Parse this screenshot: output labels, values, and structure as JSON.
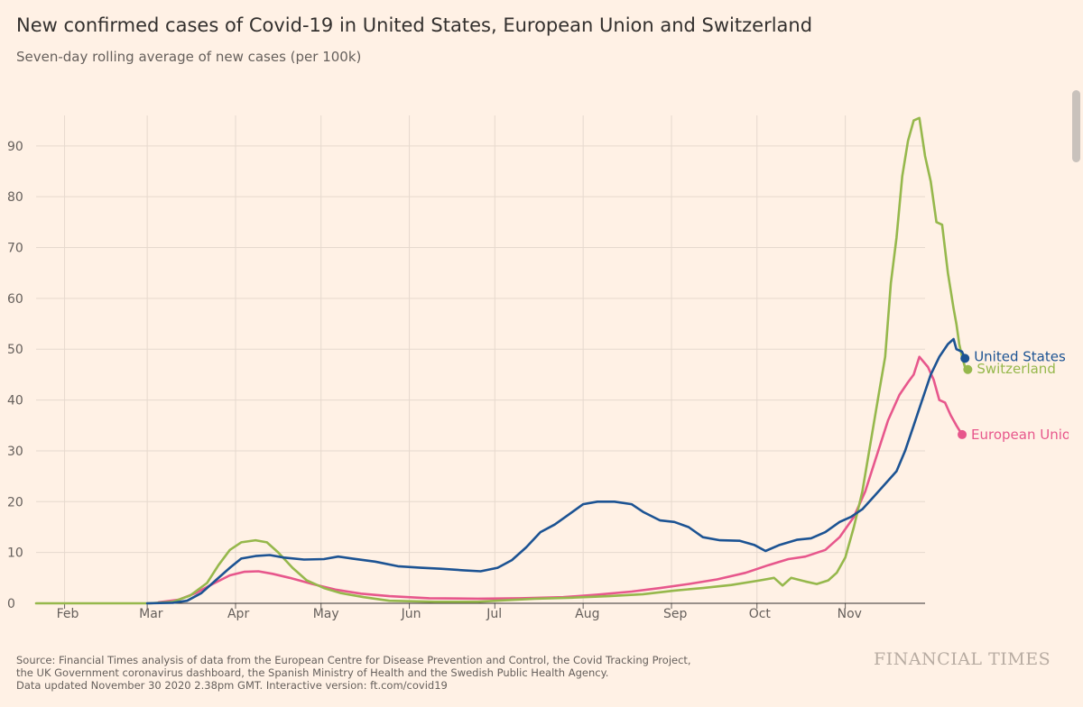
{
  "header": {
    "title": "New confirmed cases of Covid-19 in United States, European Union and Switzerland",
    "subtitle": "Seven-day rolling average of new cases (per 100k)"
  },
  "footer": {
    "source_line1": "Source: Financial Times analysis of data from the European Centre for Disease Prevention and Control, the Covid Tracking Project,",
    "source_line2": "the UK Government coronavirus dashboard, the Spanish Ministry of Health and the Swedish Public Health Agency.",
    "source_line3": "Data updated November 30 2020 2.38pm GMT. Interactive version: ft.com/covid19",
    "brand": "FINANCIAL TIMES"
  },
  "chart_data": {
    "type": "line",
    "title": "New confirmed cases of Covid-19 in United States, European Union and Switzerland",
    "subtitle": "Seven-day rolling average of new cases (per 100k)",
    "xlabel": "",
    "ylabel": "",
    "x_unit": "day of 2020",
    "xlim": [
      "2020-01-22",
      "2020-11-29"
    ],
    "ylim": [
      0,
      96
    ],
    "yticks": [
      0,
      10,
      20,
      30,
      40,
      50,
      60,
      70,
      80,
      90
    ],
    "xtick_labels": [
      "Feb",
      "Mar",
      "Apr",
      "May",
      "Jun",
      "Jul",
      "Aug",
      "Sep",
      "Oct",
      "Nov"
    ],
    "xtick_dates": [
      "2020-02-15",
      "2020-03-15",
      "2020-04-15",
      "2020-05-15",
      "2020-06-15",
      "2020-07-15",
      "2020-08-15",
      "2020-09-15",
      "2020-10-15",
      "2020-11-15"
    ],
    "grid": "vertical and horizontal",
    "legend": "direct labels at line ends",
    "series": [
      {
        "name": "United States",
        "color": "#1c5393",
        "points": [
          [
            "2020-03-01",
            0
          ],
          [
            "2020-03-10",
            0.1
          ],
          [
            "2020-03-15",
            0.5
          ],
          [
            "2020-03-20",
            2
          ],
          [
            "2020-03-25",
            4.5
          ],
          [
            "2020-03-30",
            7
          ],
          [
            "2020-04-03",
            8.8
          ],
          [
            "2020-04-08",
            9.3
          ],
          [
            "2020-04-13",
            9.5
          ],
          [
            "2020-04-18",
            9
          ],
          [
            "2020-04-25",
            8.6
          ],
          [
            "2020-05-02",
            8.7
          ],
          [
            "2020-05-07",
            9.2
          ],
          [
            "2020-05-12",
            8.8
          ],
          [
            "2020-05-20",
            8.2
          ],
          [
            "2020-05-28",
            7.3
          ],
          [
            "2020-06-05",
            7
          ],
          [
            "2020-06-12",
            6.8
          ],
          [
            "2020-06-20",
            6.5
          ],
          [
            "2020-06-26",
            6.3
          ],
          [
            "2020-07-02",
            7
          ],
          [
            "2020-07-07",
            8.5
          ],
          [
            "2020-07-12",
            11
          ],
          [
            "2020-07-17",
            14
          ],
          [
            "2020-07-22",
            15.5
          ],
          [
            "2020-07-27",
            17.5
          ],
          [
            "2020-08-01",
            19.5
          ],
          [
            "2020-08-06",
            20
          ],
          [
            "2020-08-12",
            20
          ],
          [
            "2020-08-18",
            19.5
          ],
          [
            "2020-08-22",
            18
          ],
          [
            "2020-08-28",
            16.3
          ],
          [
            "2020-09-02",
            16
          ],
          [
            "2020-09-07",
            15
          ],
          [
            "2020-09-12",
            13
          ],
          [
            "2020-09-18",
            12.4
          ],
          [
            "2020-09-25",
            12.3
          ],
          [
            "2020-09-30",
            11.5
          ],
          [
            "2020-10-04",
            10.3
          ],
          [
            "2020-10-09",
            11.5
          ],
          [
            "2020-10-15",
            12.5
          ],
          [
            "2020-10-20",
            12.8
          ],
          [
            "2020-10-25",
            14
          ],
          [
            "2020-10-30",
            16
          ],
          [
            "2020-11-03",
            17
          ],
          [
            "2020-11-07",
            18.5
          ],
          [
            "2020-11-11",
            21
          ],
          [
            "2020-11-15",
            23.5
          ],
          [
            "2020-11-19",
            26
          ],
          [
            "2020-11-22",
            30
          ],
          [
            "2020-11-25",
            35
          ],
          [
            "2020-11-28",
            40
          ],
          [
            "2020-12-01",
            45
          ],
          [
            "2020-12-04",
            48.5
          ],
          [
            "2020-12-07",
            51
          ],
          [
            "2020-12-09",
            52
          ],
          [
            "2020-12-10",
            50
          ],
          [
            "2020-12-12",
            49.5
          ],
          [
            "2020-12-13",
            48.2
          ]
        ]
      },
      {
        "name": "Switzerland",
        "color": "#96b84c",
        "points": [
          [
            "2020-01-22",
            0
          ],
          [
            "2020-03-02",
            0
          ],
          [
            "2020-03-10",
            0.3
          ],
          [
            "2020-03-16",
            1.5
          ],
          [
            "2020-03-22",
            4
          ],
          [
            "2020-03-26",
            7.5
          ],
          [
            "2020-03-30",
            10.5
          ],
          [
            "2020-04-03",
            12
          ],
          [
            "2020-04-08",
            12.4
          ],
          [
            "2020-04-12",
            12
          ],
          [
            "2020-04-16",
            10
          ],
          [
            "2020-04-21",
            7
          ],
          [
            "2020-04-26",
            4.5
          ],
          [
            "2020-05-02",
            3
          ],
          [
            "2020-05-08",
            2
          ],
          [
            "2020-05-16",
            1.2
          ],
          [
            "2020-05-25",
            0.5
          ],
          [
            "2020-06-10",
            0.3
          ],
          [
            "2020-06-25",
            0.3
          ],
          [
            "2020-07-05",
            0.6
          ],
          [
            "2020-07-15",
            0.9
          ],
          [
            "2020-07-28",
            1.1
          ],
          [
            "2020-08-10",
            1.4
          ],
          [
            "2020-08-22",
            1.8
          ],
          [
            "2020-09-02",
            2.5
          ],
          [
            "2020-09-12",
            3
          ],
          [
            "2020-09-22",
            3.6
          ],
          [
            "2020-10-02",
            4.5
          ],
          [
            "2020-10-07",
            5
          ],
          [
            "2020-10-10",
            3.5
          ],
          [
            "2020-10-13",
            5
          ],
          [
            "2020-10-18",
            4.3
          ],
          [
            "2020-10-22",
            3.8
          ],
          [
            "2020-10-26",
            4.5
          ],
          [
            "2020-10-29",
            6
          ],
          [
            "2020-11-01",
            9
          ],
          [
            "2020-11-04",
            15
          ],
          [
            "2020-11-07",
            22
          ],
          [
            "2020-11-10",
            32
          ],
          [
            "2020-11-13",
            42
          ],
          [
            "2020-11-15",
            48.5
          ],
          [
            "2020-11-17",
            63
          ],
          [
            "2020-11-19",
            72
          ],
          [
            "2020-11-21",
            84
          ],
          [
            "2020-11-23",
            91
          ],
          [
            "2020-11-25",
            95
          ],
          [
            "2020-11-27",
            95.5
          ],
          [
            "2020-11-29",
            88
          ],
          [
            "2020-12-01",
            83
          ],
          [
            "2020-12-03",
            75
          ],
          [
            "2020-12-05",
            74.5
          ],
          [
            "2020-12-07",
            65
          ],
          [
            "2020-12-09",
            58
          ],
          [
            "2020-12-10",
            55
          ],
          [
            "2020-12-11",
            51
          ],
          [
            "2020-12-12",
            48.5
          ],
          [
            "2020-12-13",
            46.5
          ],
          [
            "2020-12-14",
            46
          ]
        ]
      },
      {
        "name": "European Union",
        "color": "#e7578c",
        "points": [
          [
            "2020-03-05",
            0.2
          ],
          [
            "2020-03-12",
            0.7
          ],
          [
            "2020-03-18",
            2
          ],
          [
            "2020-03-24",
            3.8
          ],
          [
            "2020-03-30",
            5.5
          ],
          [
            "2020-04-04",
            6.2
          ],
          [
            "2020-04-09",
            6.3
          ],
          [
            "2020-04-14",
            5.8
          ],
          [
            "2020-04-20",
            5
          ],
          [
            "2020-04-28",
            3.8
          ],
          [
            "2020-05-06",
            2.7
          ],
          [
            "2020-05-15",
            1.9
          ],
          [
            "2020-05-25",
            1.4
          ],
          [
            "2020-06-08",
            1
          ],
          [
            "2020-06-25",
            0.9
          ],
          [
            "2020-07-10",
            1
          ],
          [
            "2020-07-25",
            1.2
          ],
          [
            "2020-08-06",
            1.7
          ],
          [
            "2020-08-18",
            2.3
          ],
          [
            "2020-08-28",
            3
          ],
          [
            "2020-09-07",
            3.8
          ],
          [
            "2020-09-17",
            4.7
          ],
          [
            "2020-09-27",
            6
          ],
          [
            "2020-10-05",
            7.5
          ],
          [
            "2020-10-12",
            8.7
          ],
          [
            "2020-10-18",
            9.2
          ],
          [
            "2020-10-25",
            10.5
          ],
          [
            "2020-10-30",
            13
          ],
          [
            "2020-11-04",
            17
          ],
          [
            "2020-11-08",
            22
          ],
          [
            "2020-11-12",
            29
          ],
          [
            "2020-11-16",
            36
          ],
          [
            "2020-11-20",
            41
          ],
          [
            "2020-11-23",
            43.5
          ],
          [
            "2020-11-25",
            45
          ],
          [
            "2020-11-27",
            48.5
          ],
          [
            "2020-11-30",
            46.5
          ],
          [
            "2020-12-02",
            44
          ],
          [
            "2020-12-04",
            40
          ],
          [
            "2020-12-06",
            39.5
          ],
          [
            "2020-12-08",
            37
          ],
          [
            "2020-12-10",
            35
          ],
          [
            "2020-12-12",
            33.2
          ]
        ]
      }
    ]
  }
}
